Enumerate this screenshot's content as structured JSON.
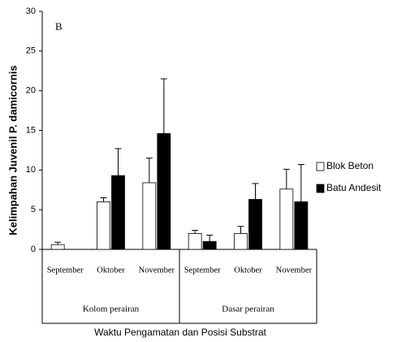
{
  "chart_data": {
    "type": "bar",
    "panel_label": "B",
    "y_label": "Kelimpahan Juvenil P. damicornis",
    "x_label": "Waktu Pengamatan dan Posisi Substrat",
    "categories": [
      "September",
      "Oktober",
      "November",
      "September",
      "Oktober",
      "November"
    ],
    "groups": [
      {
        "name": "Kolom perairan",
        "size": 3
      },
      {
        "name": "Dasar perairan",
        "size": 3
      }
    ],
    "series": [
      {
        "name": "Blok Beton",
        "color": "#ffffff",
        "values": [
          0.6,
          6.0,
          8.4,
          2.0,
          2.0,
          7.6
        ],
        "errors": [
          0.3,
          0.5,
          3.1,
          0.4,
          0.9,
          2.5
        ]
      },
      {
        "name": "Batu Andesit",
        "color": "#000000",
        "values": [
          0,
          9.3,
          14.6,
          1.0,
          6.3,
          6.0
        ],
        "errors": [
          null,
          3.4,
          6.9,
          0.8,
          2.0,
          4.7
        ]
      }
    ],
    "ylim": [
      0,
      30
    ],
    "yticks": [
      0,
      5,
      10,
      15,
      20,
      25,
      30
    ],
    "grid": false,
    "legend": "right"
  }
}
